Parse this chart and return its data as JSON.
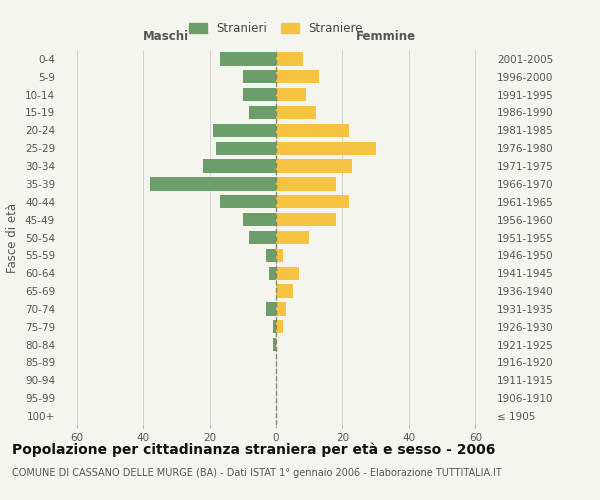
{
  "age_groups": [
    "100+",
    "95-99",
    "90-94",
    "85-89",
    "80-84",
    "75-79",
    "70-74",
    "65-69",
    "60-64",
    "55-59",
    "50-54",
    "45-49",
    "40-44",
    "35-39",
    "30-34",
    "25-29",
    "20-24",
    "15-19",
    "10-14",
    "5-9",
    "0-4"
  ],
  "birth_years": [
    "≤ 1905",
    "1906-1910",
    "1911-1915",
    "1916-1920",
    "1921-1925",
    "1926-1930",
    "1931-1935",
    "1936-1940",
    "1941-1945",
    "1946-1950",
    "1951-1955",
    "1956-1960",
    "1961-1965",
    "1966-1970",
    "1971-1975",
    "1976-1980",
    "1981-1985",
    "1986-1990",
    "1991-1995",
    "1996-2000",
    "2001-2005"
  ],
  "males": [
    0,
    0,
    0,
    0,
    1,
    1,
    3,
    0,
    2,
    3,
    8,
    10,
    17,
    38,
    22,
    18,
    19,
    8,
    10,
    10,
    17
  ],
  "females": [
    0,
    0,
    0,
    0,
    0,
    2,
    3,
    5,
    7,
    2,
    10,
    18,
    22,
    18,
    23,
    30,
    22,
    12,
    9,
    13,
    8
  ],
  "male_color": "#6b9e6b",
  "female_color": "#f5c242",
  "background_color": "#f5f5f0",
  "grid_color": "#cccccc",
  "dashed_line_color": "#888866",
  "title": "Popolazione per cittadinanza straniera per età e sesso - 2006",
  "subtitle": "COMUNE DI CASSANO DELLE MURGE (BA) - Dati ISTAT 1° gennaio 2006 - Elaborazione TUTTITALIA.IT",
  "xlabel_left": "Maschi",
  "xlabel_right": "Femmine",
  "ylabel_left": "Fasce di età",
  "legend_male": "Stranieri",
  "legend_female": "Straniere",
  "xlim": 65,
  "title_fontsize": 10,
  "subtitle_fontsize": 7,
  "tick_fontsize": 7.5,
  "label_fontsize": 8.5
}
